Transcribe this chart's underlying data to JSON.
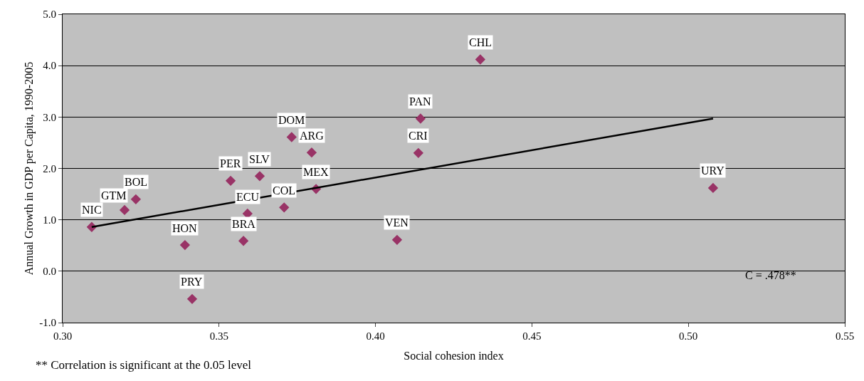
{
  "chart_data": {
    "type": "scatter",
    "xlabel": "Social cohesion index",
    "ylabel": "Annual Growth in GDP per Capita, 1990-2005",
    "series": [
      {
        "type": "scatter",
        "marker": "diamond",
        "color": "#993366",
        "x": [
          0.4335,
          0.4144,
          0.4137,
          0.5079,
          0.4069,
          0.3732,
          0.3796,
          0.381,
          0.363,
          0.3537,
          0.3708,
          0.3591,
          0.3578,
          0.3391,
          0.3414,
          0.3234,
          0.3198,
          0.3093
        ],
        "values": [
          4.12,
          2.97,
          2.3,
          1.62,
          0.61,
          2.61,
          2.31,
          1.6,
          1.85,
          1.76,
          1.24,
          1.12,
          0.59,
          0.51,
          -0.54,
          1.4,
          1.19,
          0.86
        ]
      },
      {
        "type": "line",
        "marker": "none",
        "color": "#000000",
        "x": [
          0.3093,
          0.5079
        ],
        "values": [
          0.86,
          2.97
        ]
      }
    ],
    "line_style": "solid",
    "grid": "y",
    "xlim": [
      0.3,
      0.55
    ],
    "xticks": [
      {
        "value": 0.3,
        "label": "0.30"
      },
      {
        "value": 0.35,
        "label": "0.35"
      },
      {
        "value": 0.4,
        "label": "0.40"
      },
      {
        "value": 0.45,
        "label": "0.45"
      },
      {
        "value": 0.5,
        "label": "0.50"
      },
      {
        "value": 0.55,
        "label": "0.55"
      }
    ],
    "ylim": [
      -1,
      5
    ],
    "yticks": [
      {
        "value": -1,
        "label": "-1.0"
      },
      {
        "value": 0,
        "label": "0.0"
      },
      {
        "value": 1,
        "label": "1.0"
      },
      {
        "value": 2,
        "label": "2.0"
      },
      {
        "value": 3,
        "label": "3.0"
      },
      {
        "value": 4,
        "label": "4.0"
      },
      {
        "value": 5,
        "label": "5.0"
      }
    ],
    "annotations": [
      {
        "text": "CHL",
        "x": 0.4335,
        "y": 4.12
      },
      {
        "text": "PAN",
        "x": 0.4144,
        "y": 2.97
      },
      {
        "text": "CRI",
        "x": 0.4137,
        "y": 2.3
      },
      {
        "text": "URY",
        "x": 0.5079,
        "y": 1.62
      },
      {
        "text": "VEN",
        "x": 0.4069,
        "y": 0.61
      },
      {
        "text": "DOM",
        "x": 0.3732,
        "y": 2.61
      },
      {
        "text": "ARG",
        "x": 0.3796,
        "y": 2.31
      },
      {
        "text": "MEX",
        "x": 0.381,
        "y": 1.6
      },
      {
        "text": "SLV",
        "x": 0.363,
        "y": 1.85
      },
      {
        "text": "PER",
        "x": 0.3537,
        "y": 1.76
      },
      {
        "text": "COL",
        "x": 0.3708,
        "y": 1.24
      },
      {
        "text": "ECU",
        "x": 0.3591,
        "y": 1.12
      },
      {
        "text": "BRA",
        "x": 0.3578,
        "y": 0.59
      },
      {
        "text": "HON",
        "x": 0.3391,
        "y": 0.51
      },
      {
        "text": "PRY",
        "x": 0.3414,
        "y": -0.54
      },
      {
        "text": "BOL",
        "x": 0.3234,
        "y": 1.4
      },
      {
        "text": "GTM",
        "x": 0.3198,
        "y": 1.19
      },
      {
        "text": "NIC",
        "x": 0.3093,
        "y": 0.86
      },
      "C = .478**",
      "** Correlation is significant at the 0.05 level"
    ]
  }
}
